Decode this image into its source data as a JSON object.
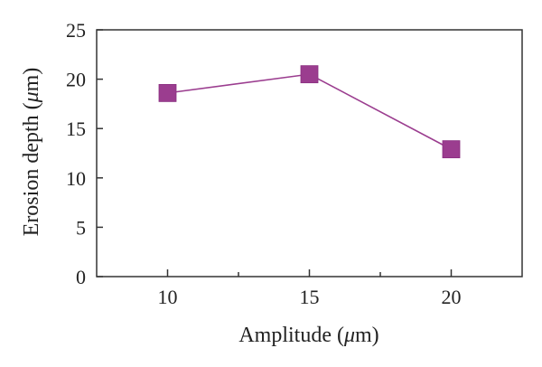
{
  "chart_data": {
    "type": "line",
    "x": [
      10,
      15,
      20
    ],
    "series": [
      {
        "values": [
          18.6,
          20.5,
          12.9
        ]
      }
    ],
    "xlabel_main": "Amplitude (",
    "xlabel_mu": "μ",
    "xlabel_unit": "m)",
    "ylabel_main": "Erosion depth (",
    "ylabel_mu": "μ",
    "ylabel_unit": "m)",
    "xlim": [
      7.5,
      22.5
    ],
    "ylim": [
      0,
      25
    ],
    "x_ticks": [
      10,
      15,
      20
    ],
    "y_ticks": [
      0,
      5,
      10,
      15,
      20,
      25
    ],
    "x_tick_labels": [
      "10",
      "15",
      "20"
    ],
    "y_tick_labels": [
      "0",
      "5",
      "10",
      "15",
      "20",
      "25"
    ],
    "grid": false,
    "colors": {
      "series": "#9b3d8f",
      "axis": "#333333"
    },
    "marker": "square"
  }
}
